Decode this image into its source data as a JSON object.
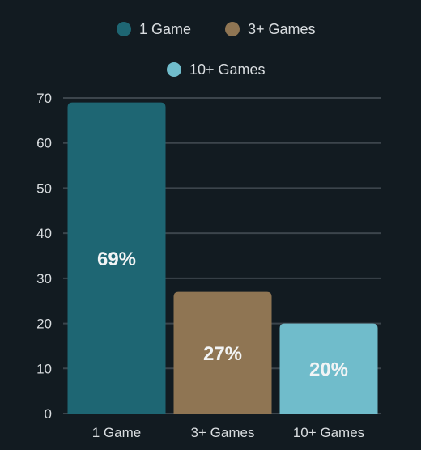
{
  "chart_data": {
    "type": "bar",
    "categories": [
      "1 Game",
      "3+ Games",
      "10+ Games"
    ],
    "values": [
      69,
      27,
      20
    ],
    "data_labels": [
      "69%",
      "27%",
      "20%"
    ],
    "colors": [
      "#1e6673",
      "#8f7553",
      "#70bccb"
    ],
    "legend": {
      "placement": "top",
      "entries": [
        "1 Game",
        "3+ Games",
        "10+ Games"
      ]
    },
    "y_ticks": [
      0,
      10,
      20,
      30,
      40,
      50,
      60,
      70
    ],
    "ylim": [
      0,
      70
    ],
    "grid": true,
    "title": "",
    "xlabel": "",
    "ylabel": ""
  }
}
